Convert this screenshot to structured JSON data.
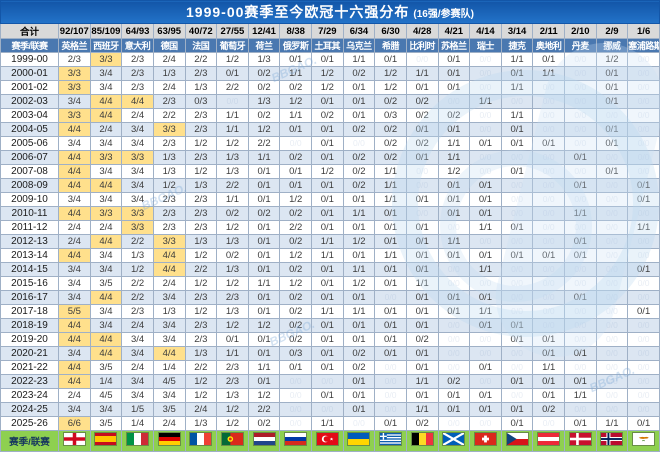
{
  "title": {
    "main": "1999-00赛季至今欧冠十六强分布",
    "suffix": "(16强/参赛队)"
  },
  "ghost_value": "0/0",
  "watermark_text": "BBGAO.",
  "colors": {
    "title_blue_top": "#1356a8",
    "title_blue_bottom": "#2373c9",
    "totals_row_bg": "#d9d9d9",
    "league_row_bg": "#4a78b0",
    "alt_row_bg": "#dce6f2",
    "highlight_bg": "#ffe08c",
    "footer_green": "#8ed050",
    "grid_border": "#9fb0c6"
  },
  "chart_data": {
    "type": "table",
    "totals_label": "合计",
    "totals": [
      "92/107",
      "85/109",
      "64/93",
      "63/95",
      "40/72",
      "27/55",
      "12/41",
      "8/38",
      "7/29",
      "6/34",
      "6/30",
      "4/28",
      "4/21",
      "4/14",
      "3/14",
      "2/11",
      "2/10",
      "2/9",
      "1/6"
    ],
    "leagues_label": "赛季/联赛",
    "leagues": [
      "英格兰",
      "西班牙",
      "意大利",
      "德国",
      "法国",
      "葡萄牙",
      "荷兰",
      "俄罗斯",
      "土耳其",
      "乌克兰",
      "希腊",
      "比利时",
      "苏格兰",
      "瑞士",
      "捷克",
      "奥地利",
      "丹麦",
      "挪威",
      "塞浦路斯"
    ],
    "footer_label": "赛季/联赛",
    "flags": [
      {
        "id": "england",
        "country": "英格兰"
      },
      {
        "id": "spain",
        "country": "西班牙"
      },
      {
        "id": "italy",
        "country": "意大利"
      },
      {
        "id": "germany",
        "country": "德国"
      },
      {
        "id": "france",
        "country": "法国"
      },
      {
        "id": "portugal",
        "country": "葡萄牙"
      },
      {
        "id": "netherlands",
        "country": "荷兰"
      },
      {
        "id": "russia",
        "country": "俄罗斯"
      },
      {
        "id": "turkey",
        "country": "土耳其"
      },
      {
        "id": "ukraine",
        "country": "乌克兰"
      },
      {
        "id": "greece",
        "country": "希腊"
      },
      {
        "id": "belgium",
        "country": "比利时"
      },
      {
        "id": "scotland",
        "country": "苏格兰"
      },
      {
        "id": "switzerland",
        "country": "瑞士"
      },
      {
        "id": "czech",
        "country": "捷克"
      },
      {
        "id": "austria",
        "country": "奥地利"
      },
      {
        "id": "denmark",
        "country": "丹麦"
      },
      {
        "id": "norway",
        "country": "挪威"
      },
      {
        "id": "cyprus",
        "country": "塞浦路斯"
      }
    ],
    "rows": [
      {
        "season": "1999-00",
        "values": [
          "2/3",
          "3/3",
          "2/3",
          "2/4",
          "2/2",
          "1/2",
          "1/3",
          "0/1",
          "0/1",
          "1/1",
          "0/1",
          "",
          "0/1",
          "",
          "1/1",
          "0/1",
          "",
          "1/2",
          ""
        ],
        "highlights": [
          1
        ]
      },
      {
        "season": "2000-01",
        "values": [
          "3/3",
          "3/4",
          "2/3",
          "1/3",
          "2/3",
          "0/1",
          "0/2",
          "1/1",
          "1/2",
          "0/2",
          "1/2",
          "1/1",
          "0/1",
          "",
          "0/1",
          "1/1",
          "",
          "0/1",
          ""
        ],
        "highlights": [
          0
        ]
      },
      {
        "season": "2001-02",
        "values": [
          "3/3",
          "3/4",
          "2/3",
          "2/4",
          "1/3",
          "2/2",
          "0/2",
          "0/2",
          "1/2",
          "0/1",
          "1/2",
          "0/1",
          "0/1",
          "",
          "1/1",
          "",
          "",
          "0/1",
          ""
        ],
        "highlights": [
          0
        ]
      },
      {
        "season": "2002-03",
        "values": [
          "3/4",
          "4/4",
          "4/4",
          "2/3",
          "0/3",
          "",
          "1/3",
          "1/2",
          "0/1",
          "0/1",
          "0/2",
          "0/2",
          "",
          "1/1",
          "",
          "",
          "",
          "0/1",
          ""
        ],
        "highlights": [
          1,
          2
        ]
      },
      {
        "season": "2003-04",
        "values": [
          "3/3",
          "4/4",
          "2/4",
          "2/2",
          "2/3",
          "1/1",
          "0/2",
          "1/1",
          "0/2",
          "0/1",
          "0/3",
          "0/2",
          "0/2",
          "",
          "1/1",
          "",
          "",
          "",
          ""
        ],
        "highlights": [
          0,
          1
        ]
      },
      {
        "season": "2004-05",
        "values": [
          "4/4",
          "2/4",
          "3/4",
          "3/3",
          "2/3",
          "1/1",
          "1/2",
          "0/1",
          "0/1",
          "0/2",
          "0/2",
          "0/1",
          "0/1",
          "",
          "0/1",
          "",
          "",
          "0/1",
          ""
        ],
        "highlights": [
          0,
          3
        ]
      },
      {
        "season": "2005-06",
        "values": [
          "3/4",
          "3/4",
          "3/4",
          "2/3",
          "1/2",
          "1/2",
          "2/2",
          "",
          "0/1",
          "",
          "0/2",
          "0/2",
          "1/1",
          "0/1",
          "0/1",
          "0/1",
          "",
          "0/1",
          ""
        ],
        "highlights": []
      },
      {
        "season": "2006-07",
        "values": [
          "4/4",
          "3/3",
          "3/3",
          "1/3",
          "2/3",
          "1/3",
          "1/1",
          "0/2",
          "0/1",
          "0/2",
          "0/2",
          "0/1",
          "1/1",
          "",
          "",
          "",
          "0/1",
          "",
          ""
        ],
        "highlights": [
          0,
          1,
          2
        ]
      },
      {
        "season": "2007-08",
        "values": [
          "4/4",
          "3/4",
          "3/4",
          "1/3",
          "1/2",
          "1/3",
          "0/1",
          "0/1",
          "1/2",
          "0/2",
          "1/1",
          "",
          "1/2",
          "",
          "0/1",
          "",
          "",
          "0/1",
          ""
        ],
        "highlights": [
          0
        ]
      },
      {
        "season": "2008-09",
        "values": [
          "4/4",
          "4/4",
          "3/4",
          "1/2",
          "1/3",
          "2/2",
          "0/1",
          "0/1",
          "0/1",
          "0/2",
          "1/1",
          "",
          "0/1",
          "0/1",
          "",
          "",
          "0/1",
          "",
          "0/1"
        ],
        "highlights": [
          0,
          1
        ]
      },
      {
        "season": "2009-10",
        "values": [
          "3/4",
          "3/4",
          "3/4",
          "2/3",
          "2/3",
          "1/1",
          "0/1",
          "1/2",
          "0/1",
          "0/1",
          "1/1",
          "0/1",
          "0/1",
          "0/1",
          "",
          "",
          "",
          "",
          "0/1"
        ],
        "highlights": []
      },
      {
        "season": "2010-11",
        "values": [
          "4/4",
          "3/3",
          "3/3",
          "2/3",
          "2/3",
          "0/2",
          "0/2",
          "0/2",
          "0/1",
          "1/1",
          "0/1",
          "",
          "0/1",
          "0/1",
          "",
          "",
          "1/1",
          "",
          ""
        ],
        "highlights": [
          0,
          1,
          2
        ]
      },
      {
        "season": "2011-12",
        "values": [
          "2/4",
          "2/4",
          "3/3",
          "2/3",
          "2/3",
          "1/2",
          "0/1",
          "2/2",
          "0/1",
          "0/1",
          "0/1",
          "0/1",
          "",
          "1/1",
          "0/1",
          "",
          "",
          "",
          "1/1"
        ],
        "highlights": [
          2
        ]
      },
      {
        "season": "2012-13",
        "values": [
          "2/4",
          "4/4",
          "2/2",
          "3/3",
          "1/3",
          "1/3",
          "0/1",
          "0/2",
          "1/1",
          "1/2",
          "0/1",
          "0/1",
          "1/1",
          "",
          "",
          "",
          "0/1",
          "",
          ""
        ],
        "highlights": [
          1,
          3
        ]
      },
      {
        "season": "2013-14",
        "values": [
          "4/4",
          "3/4",
          "1/3",
          "4/4",
          "1/2",
          "0/2",
          "0/1",
          "1/2",
          "1/1",
          "0/1",
          "1/1",
          "0/1",
          "0/1",
          "0/1",
          "0/1",
          "0/1",
          "0/1",
          "",
          ""
        ],
        "highlights": [
          0,
          3
        ]
      },
      {
        "season": "2014-15",
        "values": [
          "3/4",
          "3/4",
          "1/2",
          "4/4",
          "2/2",
          "1/3",
          "0/1",
          "0/2",
          "0/1",
          "1/1",
          "0/1",
          "0/1",
          "",
          "1/1",
          "",
          "",
          "",
          "",
          "0/1"
        ],
        "highlights": [
          3
        ]
      },
      {
        "season": "2015-16",
        "values": [
          "3/4",
          "3/5",
          "2/2",
          "2/4",
          "1/2",
          "1/2",
          "1/1",
          "1/2",
          "0/1",
          "1/2",
          "0/1",
          "1/1",
          "",
          "",
          "",
          "",
          "",
          "",
          ""
        ],
        "highlights": []
      },
      {
        "season": "2016-17",
        "values": [
          "3/4",
          "4/4",
          "2/2",
          "3/4",
          "2/3",
          "2/3",
          "0/1",
          "0/2",
          "0/1",
          "0/1",
          "",
          "0/1",
          "0/1",
          "0/1",
          "",
          "",
          "0/1",
          "",
          ""
        ],
        "highlights": [
          1
        ]
      },
      {
        "season": "2017-18",
        "values": [
          "5/5",
          "3/4",
          "2/3",
          "1/3",
          "1/2",
          "1/3",
          "0/1",
          "0/2",
          "1/1",
          "1/1",
          "0/1",
          "0/1",
          "0/1",
          "1/1",
          "",
          "",
          "",
          "",
          "0/1"
        ],
        "highlights": [
          0
        ]
      },
      {
        "season": "2018-19",
        "values": [
          "4/4",
          "3/4",
          "2/4",
          "3/4",
          "2/3",
          "1/2",
          "1/2",
          "0/2",
          "0/1",
          "0/1",
          "0/1",
          "0/1",
          "",
          "0/1",
          "0/1",
          "",
          "",
          "",
          ""
        ],
        "highlights": [
          0
        ]
      },
      {
        "season": "2019-20",
        "values": [
          "4/4",
          "4/4",
          "3/4",
          "3/4",
          "2/3",
          "0/1",
          "0/1",
          "0/2",
          "0/1",
          "0/1",
          "0/1",
          "0/2",
          "",
          "",
          "0/1",
          "0/1",
          "",
          "",
          ""
        ],
        "highlights": [
          0,
          1
        ]
      },
      {
        "season": "2020-21",
        "values": [
          "3/4",
          "4/4",
          "3/4",
          "4/4",
          "1/3",
          "1/1",
          "0/1",
          "0/3",
          "0/1",
          "0/2",
          "0/1",
          "0/1",
          "",
          "",
          "",
          "0/1",
          "0/1",
          "",
          ""
        ],
        "highlights": [
          1,
          3
        ]
      },
      {
        "season": "2021-22",
        "values": [
          "4/4",
          "3/5",
          "2/4",
          "1/4",
          "2/2",
          "2/3",
          "1/1",
          "0/1",
          "0/1",
          "0/2",
          "",
          "0/1",
          "",
          "0/1",
          "",
          "1/1",
          "",
          "",
          ""
        ],
        "highlights": [
          0
        ]
      },
      {
        "season": "2022-23",
        "values": [
          "4/4",
          "1/4",
          "3/4",
          "4/5",
          "1/2",
          "2/3",
          "0/1",
          "",
          "",
          "0/1",
          "",
          "1/1",
          "0/2",
          "",
          "0/1",
          "0/1",
          "0/1",
          "",
          ""
        ],
        "highlights": [
          0
        ]
      },
      {
        "season": "2023-24",
        "values": [
          "2/4",
          "4/5",
          "3/4",
          "3/4",
          "1/2",
          "1/3",
          "1/2",
          "",
          "0/1",
          "0/1",
          "",
          "0/1",
          "0/1",
          "0/1",
          "",
          "0/1",
          "1/1",
          "",
          ""
        ],
        "highlights": []
      },
      {
        "season": "2024-25",
        "values": [
          "3/4",
          "3/4",
          "1/5",
          "3/5",
          "2/4",
          "1/2",
          "2/2",
          "",
          "",
          "0/1",
          "",
          "1/1",
          "0/1",
          "0/1",
          "0/1",
          "0/2",
          "",
          "",
          ""
        ],
        "highlights": []
      },
      {
        "season": "2025-26",
        "values": [
          "6/6",
          "3/5",
          "1/4",
          "2/4",
          "1/3",
          "1/2",
          "0/2",
          "",
          "1/1",
          "",
          "0/1",
          "0/2",
          "",
          "",
          "0/1",
          "",
          "0/1",
          "1/1",
          "0/1"
        ],
        "highlights": [
          0
        ]
      }
    ]
  }
}
